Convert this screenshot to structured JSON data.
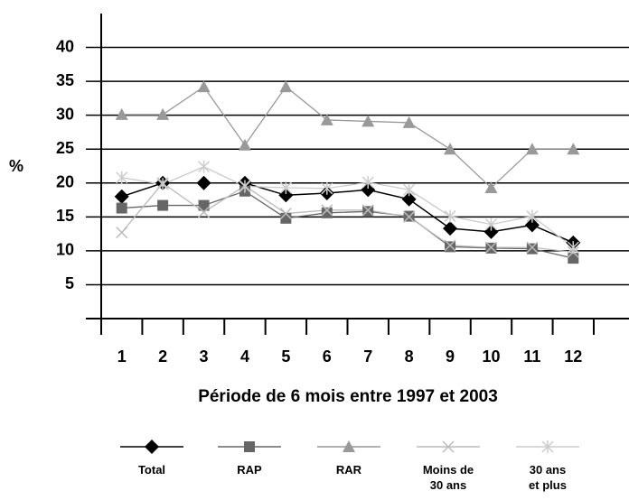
{
  "chart_data": {
    "type": "line",
    "x_label": "Période de 6 mois entre 1997 et 2003",
    "y_label": "%",
    "categories": [
      "1",
      "2",
      "3",
      "4",
      "5",
      "6",
      "7",
      "8",
      "9",
      "10",
      "11",
      "12"
    ],
    "ylim": [
      0,
      45
    ],
    "yticks": [
      5,
      10,
      15,
      20,
      25,
      30,
      35,
      40
    ],
    "grid": true,
    "series": [
      {
        "name": "Total",
        "color": "#000000",
        "marker": "diamond",
        "values": [
          18,
          20,
          20,
          20,
          18.2,
          18.5,
          19,
          17.6,
          13.3,
          12.8,
          13.8,
          11.2
        ]
      },
      {
        "name": "RAP",
        "color": "#666666",
        "marker": "square",
        "values": [
          16.3,
          16.7,
          16.7,
          18.8,
          14.8,
          15.6,
          15.8,
          15.1,
          10.6,
          10.4,
          10.3,
          8.9
        ]
      },
      {
        "name": "RAR",
        "color": "#999999",
        "marker": "triangle",
        "values": [
          30.1,
          30.1,
          34.2,
          25.6,
          34.2,
          29.3,
          29.1,
          28.9,
          25,
          19.3,
          25,
          25
        ]
      },
      {
        "name": "Moins de 30 ans",
        "color": "#bbbbbb",
        "marker": "x",
        "values": [
          12.7,
          20,
          15.7,
          19.6,
          15.5,
          16,
          16,
          15,
          10.8,
          10.5,
          10.5,
          9.8
        ]
      },
      {
        "name": "30 ans et plus",
        "color": "#cccccc",
        "marker": "star",
        "values": [
          20.8,
          19.8,
          22.4,
          19.5,
          19.3,
          19.2,
          20.1,
          19,
          15.1,
          13.9,
          15.1,
          10.5
        ]
      }
    ]
  }
}
